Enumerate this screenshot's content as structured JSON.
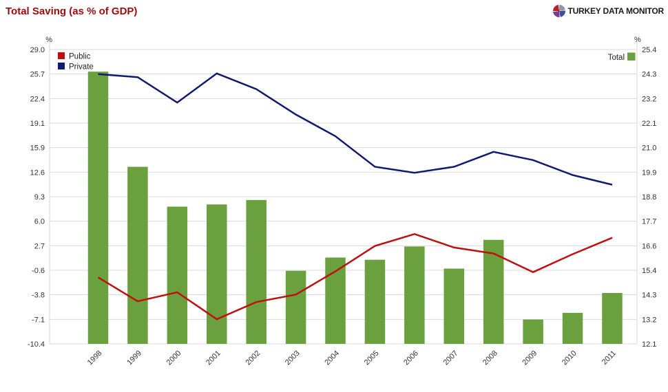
{
  "title": "Total Saving (as % of GDP)",
  "brand": {
    "name": "TURKEY DATA MONITOR"
  },
  "chart_data": {
    "type": "bar",
    "subtype": "combo-bar-and-lines",
    "categories": [
      "1998",
      "1999",
      "2000",
      "2001",
      "2002",
      "2003",
      "2004",
      "2005",
      "2006",
      "2007",
      "2008",
      "2009",
      "2010",
      "2011"
    ],
    "series": [
      {
        "name": "Total",
        "kind": "bar",
        "axis": "right",
        "color": "#6ba03e",
        "values": [
          24.4,
          20.1,
          18.3,
          18.4,
          18.6,
          15.4,
          16.0,
          15.9,
          16.5,
          15.5,
          16.8,
          13.2,
          13.5,
          14.4
        ]
      },
      {
        "name": "Public",
        "kind": "line",
        "axis": "left",
        "color": "#c00f0f",
        "values": [
          -1.5,
          -4.7,
          -3.5,
          -7.1,
          -4.8,
          -3.8,
          -0.7,
          2.7,
          4.3,
          2.5,
          1.7,
          -0.8,
          1.6,
          3.8
        ]
      },
      {
        "name": "Private",
        "kind": "line",
        "axis": "left",
        "color": "#101a70",
        "values": [
          25.7,
          25.3,
          21.9,
          25.8,
          23.7,
          20.3,
          17.4,
          13.3,
          12.5,
          13.3,
          15.3,
          14.2,
          12.2,
          10.9
        ]
      }
    ],
    "left_axis": {
      "label": "%",
      "min": -10.4,
      "max": 29.0,
      "ticks": [
        29.0,
        25.7,
        22.4,
        19.1,
        15.9,
        12.6,
        9.3,
        6.0,
        2.7,
        -0.6,
        -3.8,
        -7.1,
        -10.4
      ]
    },
    "right_axis": {
      "label": "%",
      "min": 12.1,
      "max": 25.4,
      "ticks": [
        25.4,
        24.3,
        23.2,
        22.1,
        21.0,
        19.9,
        18.8,
        17.7,
        16.6,
        15.4,
        14.3,
        13.2,
        12.1
      ]
    },
    "legend_left": [
      "Public",
      "Private"
    ],
    "legend_right": [
      "Total"
    ],
    "grid": true,
    "gridline_color": "#d9d9d9"
  }
}
